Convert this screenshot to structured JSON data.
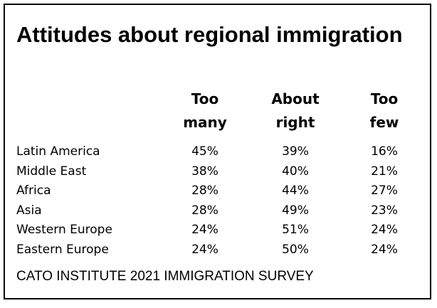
{
  "title": "Attitudes about regional immigration",
  "source": "CATO INSTITUTE 2021 IMMIGRATION SURVEY",
  "chart_data": {
    "type": "table",
    "columns": [
      "Too\nmany",
      "About\nright",
      "Too\nfew"
    ],
    "rows": [
      {
        "label": "Latin America",
        "values": [
          "45%",
          "39%",
          "16%"
        ]
      },
      {
        "label": "Middle East",
        "values": [
          "38%",
          "40%",
          "21%"
        ]
      },
      {
        "label": "Africa",
        "values": [
          "28%",
          "44%",
          "27%"
        ]
      },
      {
        "label": "Asia",
        "values": [
          "28%",
          "49%",
          "23%"
        ]
      },
      {
        "label": "Western Europe",
        "values": [
          "24%",
          "51%",
          "24%"
        ]
      },
      {
        "label": "Eastern Europe",
        "values": [
          "24%",
          "50%",
          "24%"
        ]
      }
    ]
  }
}
